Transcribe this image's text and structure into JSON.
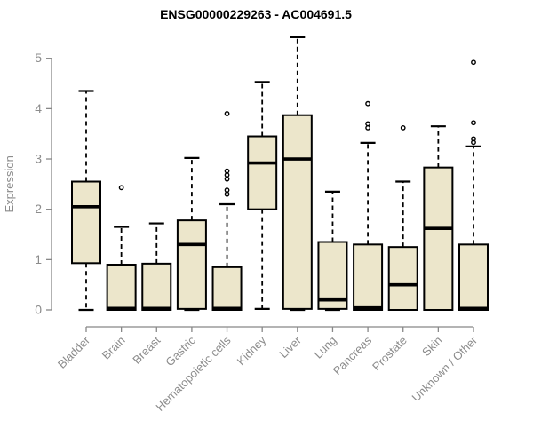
{
  "title": "ENSG00000229263 - AC004691.5",
  "chart_data": {
    "type": "boxplot",
    "title": "ENSG00000229263 - AC004691.5",
    "xlabel": "",
    "ylabel": "Expression",
    "ylim": [
      0,
      5
    ],
    "yticks": [
      0,
      1,
      2,
      3,
      4,
      5
    ],
    "grid": "off",
    "legend": "none",
    "categories": [
      "Bladder",
      "Brain",
      "Breast",
      "Gastric",
      "Hematopoietic cells",
      "Kidney",
      "Liver",
      "Lung",
      "Pancreas",
      "Prostate",
      "Skin",
      "Unknown / Other"
    ],
    "series": [
      {
        "name": "Bladder",
        "min": 0,
        "q1": 0.93,
        "median": 2.05,
        "q3": 2.55,
        "max": 4.35,
        "outliers": []
      },
      {
        "name": "Brain",
        "min": 0,
        "q1": 0,
        "median": 0.03,
        "q3": 0.9,
        "max": 1.65,
        "outliers": [
          2.43
        ]
      },
      {
        "name": "Breast",
        "min": 0,
        "q1": 0,
        "median": 0.03,
        "q3": 0.92,
        "max": 1.72,
        "outliers": []
      },
      {
        "name": "Gastric",
        "min": 0,
        "q1": 0.02,
        "median": 1.3,
        "q3": 1.78,
        "max": 3.02,
        "outliers": []
      },
      {
        "name": "Hematopoietic cells",
        "min": 0,
        "q1": 0,
        "median": 0.03,
        "q3": 0.85,
        "max": 2.1,
        "outliers": [
          2.3,
          2.38,
          2.6,
          2.68,
          2.76,
          3.9
        ]
      },
      {
        "name": "Kidney",
        "min": 0.02,
        "q1": 2.0,
        "median": 2.92,
        "q3": 3.45,
        "max": 4.53,
        "outliers": []
      },
      {
        "name": "Liver",
        "min": 0,
        "q1": 0.02,
        "median": 3.0,
        "q3": 3.87,
        "max": 5.42,
        "outliers": []
      },
      {
        "name": "Lung",
        "min": 0,
        "q1": 0.02,
        "median": 0.2,
        "q3": 1.35,
        "max": 2.35,
        "outliers": []
      },
      {
        "name": "Pancreas",
        "min": 0,
        "q1": 0,
        "median": 0.04,
        "q3": 1.3,
        "max": 3.32,
        "outliers": [
          3.62,
          3.7,
          4.1
        ]
      },
      {
        "name": "Prostate",
        "min": 0,
        "q1": 0,
        "median": 0.5,
        "q3": 1.25,
        "max": 2.55,
        "outliers": [
          3.62
        ]
      },
      {
        "name": "Skin",
        "min": 0,
        "q1": 0,
        "median": 1.62,
        "q3": 2.83,
        "max": 3.65,
        "outliers": []
      },
      {
        "name": "Unknown / Other",
        "min": 0,
        "q1": 0,
        "median": 0.03,
        "q3": 1.3,
        "max": 3.25,
        "outliers": [
          3.33,
          3.4,
          3.72,
          4.92
        ]
      }
    ],
    "colors": {
      "box_fill": "#ece6cb",
      "box_border": "#000000",
      "median": "#000000",
      "whisker": "#000000",
      "axis": "#888888",
      "tick_label": "#8c8c8c",
      "title": "#000000",
      "background": "#ffffff"
    }
  }
}
